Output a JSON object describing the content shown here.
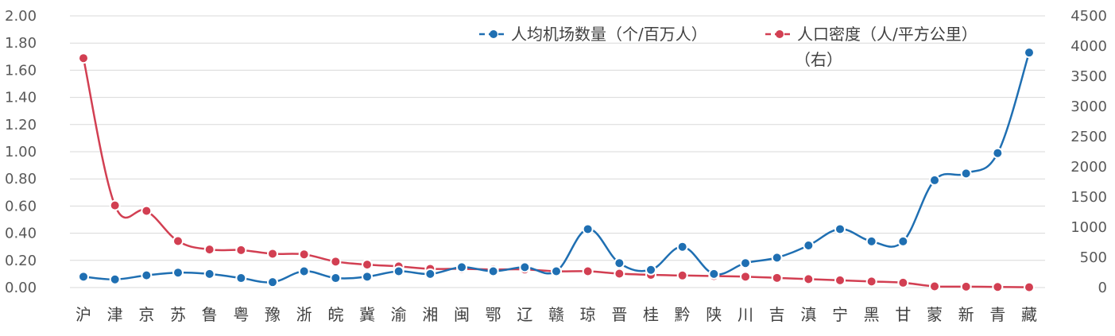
{
  "chart_data": {
    "type": "line",
    "categories": [
      "沪",
      "津",
      "京",
      "苏",
      "鲁",
      "粤",
      "豫",
      "浙",
      "皖",
      "冀",
      "渝",
      "湘",
      "闽",
      "鄂",
      "辽",
      "赣",
      "琼",
      "晋",
      "桂",
      "黔",
      "陕",
      "川",
      "吉",
      "滇",
      "宁",
      "黑",
      "甘",
      "蒙",
      "新",
      "青",
      "藏"
    ],
    "y_left": {
      "ylim": [
        0,
        2.0
      ],
      "ticks": [
        "0.00",
        "0.20",
        "0.40",
        "0.60",
        "0.80",
        "1.00",
        "1.20",
        "1.40",
        "1.60",
        "1.80",
        "2.00"
      ]
    },
    "y_right": {
      "ylim": [
        0,
        4500
      ],
      "ticks": [
        "0",
        "500",
        "1000",
        "1500",
        "2000",
        "2500",
        "3000",
        "3500",
        "4000",
        "4500"
      ]
    },
    "grid": true,
    "legend_position": "top-right",
    "series": [
      {
        "name": "人均机场数量（个/百万人）",
        "axis": "left",
        "color": "#1f6fb2",
        "values": [
          0.08,
          0.06,
          0.09,
          0.11,
          0.1,
          0.07,
          0.04,
          0.12,
          0.07,
          0.08,
          0.12,
          0.1,
          0.15,
          0.12,
          0.15,
          0.12,
          0.43,
          0.18,
          0.13,
          0.3,
          0.1,
          0.18,
          0.22,
          0.31,
          0.43,
          0.34,
          0.34,
          0.79,
          0.84,
          0.99,
          1.73
        ]
      },
      {
        "name": "人口密度（人/平方公里）",
        "name_suffix": "（右）",
        "axis": "right",
        "color": "#d23f52",
        "values": [
          3800,
          1360,
          1270,
          770,
          630,
          620,
          560,
          550,
          430,
          380,
          350,
          310,
          310,
          300,
          300,
          270,
          270,
          230,
          210,
          200,
          190,
          180,
          160,
          140,
          120,
          100,
          80,
          20,
          15,
          10,
          5
        ]
      }
    ]
  }
}
